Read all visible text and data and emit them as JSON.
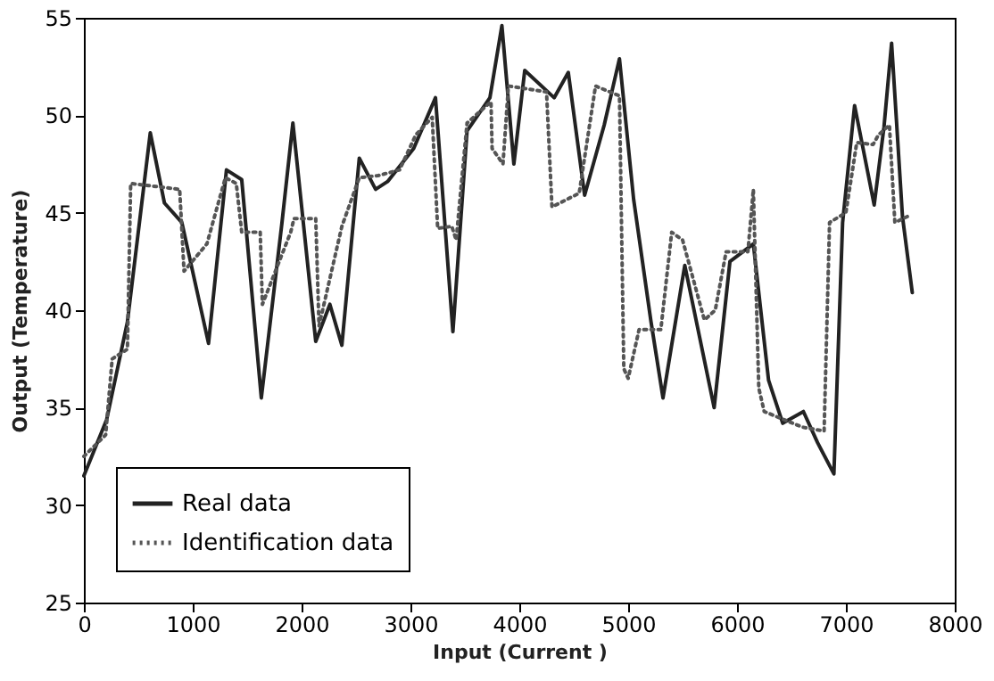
{
  "chart_data": {
    "type": "line",
    "xlabel": "Input (Current )",
    "ylabel": "Output (Temperature)",
    "xlim": [
      0,
      8000
    ],
    "xticks": [
      0,
      1000,
      2000,
      3000,
      4000,
      5000,
      6000,
      7000,
      8000
    ],
    "ylim": [
      25,
      55
    ],
    "yticks": [
      25,
      30,
      35,
      40,
      45,
      50,
      55
    ],
    "grid": false,
    "legend": "bottom left",
    "series": [
      {
        "name": "Real data",
        "color": "#222222",
        "line_style": "solid",
        "x": [
          0,
          210,
          400,
          610,
          740,
          900,
          1145,
          1310,
          1450,
          1630,
          1820,
          1920,
          2130,
          2260,
          2370,
          2530,
          2680,
          2790,
          3030,
          3230,
          3390,
          3520,
          3730,
          3840,
          3950,
          4050,
          4320,
          4450,
          4600,
          4780,
          4920,
          5050,
          5210,
          5320,
          5520,
          5790,
          5935,
          6150,
          6290,
          6420,
          6610,
          6740,
          6890,
          6970,
          7080,
          7260,
          7350,
          7420,
          7520,
          7610
        ],
        "values": [
          31.5,
          34.4,
          39.4,
          49.1,
          45.5,
          44.5,
          38.3,
          47.2,
          46.7,
          35.5,
          44.5,
          49.6,
          38.4,
          40.3,
          38.2,
          47.8,
          46.2,
          46.6,
          48.3,
          50.9,
          38.9,
          49.2,
          50.9,
          54.6,
          47.5,
          52.3,
          50.9,
          52.2,
          45.9,
          49.5,
          52.9,
          45.7,
          39.4,
          35.5,
          42.3,
          35,
          42.5,
          43.4,
          36.4,
          34.2,
          34.8,
          33.2,
          31.6,
          44.5,
          50.5,
          45.4,
          49.4,
          53.7,
          44.8,
          40.9
        ]
      },
      {
        "name": "Identification data",
        "color": "#555555",
        "line_style": "dotted",
        "x": [
          0,
          200,
          260,
          400,
          430,
          880,
          920,
          1130,
          1300,
          1400,
          1450,
          1620,
          1640,
          1900,
          1930,
          2130,
          2160,
          2370,
          2530,
          2700,
          2900,
          3050,
          3200,
          3250,
          3380,
          3420,
          3520,
          3740,
          3750,
          3850,
          3900,
          4250,
          4300,
          4550,
          4700,
          4920,
          4960,
          5000,
          5100,
          5300,
          5400,
          5500,
          5700,
          5800,
          5900,
          6100,
          6150,
          6200,
          6250,
          6600,
          6800,
          6850,
          7000,
          7100,
          7250,
          7300,
          7400,
          7450,
          7600
        ],
        "values": [
          32.5,
          33.6,
          37.5,
          38,
          46.5,
          46.2,
          42,
          43.4,
          46.8,
          46.5,
          44,
          44,
          40.3,
          44,
          44.7,
          44.7,
          39.2,
          44.3,
          46.8,
          46.9,
          47.2,
          49,
          49.9,
          44.2,
          44.3,
          43.6,
          49.6,
          50.7,
          48.3,
          47.5,
          51.5,
          51.2,
          45.3,
          46,
          51.5,
          51,
          37,
          36.5,
          39,
          39,
          44,
          43.6,
          39.5,
          40,
          43,
          43,
          46.2,
          36,
          34.8,
          34,
          33.8,
          44.5,
          45,
          48.6,
          48.5,
          49,
          49.5,
          44.5,
          44.9
        ]
      }
    ]
  }
}
